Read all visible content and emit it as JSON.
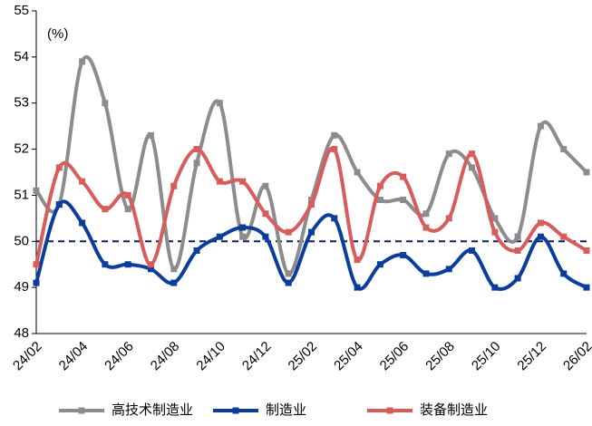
{
  "chart_data": {
    "type": "line",
    "annotation": "(%)",
    "categories": [
      "24/02",
      null,
      "24/04",
      null,
      "24/06",
      null,
      "24/08",
      null,
      "24/10",
      null,
      "24/12",
      null,
      "25/02",
      null,
      "25/04",
      null,
      "25/06",
      null,
      "25/08",
      null,
      "25/10",
      null,
      "25/12",
      null,
      "26/02"
    ],
    "series": [
      {
        "name": "高技术制造业",
        "color": "#8c8c8c",
        "values": [
          51.1,
          50.8,
          53.9,
          53.0,
          50.7,
          52.3,
          49.4,
          51.7,
          53.0,
          50.1,
          51.2,
          49.3,
          50.9,
          52.3,
          51.5,
          50.9,
          50.9,
          50.6,
          51.9,
          51.6,
          50.5,
          50.1,
          52.5,
          52.0,
          51.5
        ]
      },
      {
        "name": "制造业",
        "color": "#0a3d9c",
        "values": [
          49.1,
          50.8,
          50.4,
          49.5,
          49.5,
          49.4,
          49.1,
          49.8,
          50.1,
          50.3,
          50.1,
          49.1,
          50.2,
          50.5,
          49.0,
          49.5,
          49.7,
          49.3,
          49.4,
          49.8,
          49.0,
          49.2,
          50.1,
          49.3,
          49.0
        ]
      },
      {
        "name": "装备制造业",
        "color": "#d95c5c",
        "values": [
          49.5,
          51.6,
          51.3,
          50.7,
          51.0,
          49.5,
          51.2,
          52.0,
          51.3,
          51.3,
          50.6,
          50.2,
          50.8,
          52.0,
          49.6,
          51.2,
          51.4,
          50.3,
          50.5,
          51.9,
          50.2,
          49.8,
          50.4,
          50.1,
          49.8
        ]
      }
    ],
    "reference_line": 50,
    "ylim": [
      48,
      55
    ],
    "yticks": [
      48,
      49,
      50,
      51,
      52,
      53,
      54,
      55
    ],
    "legend": "bottom"
  }
}
